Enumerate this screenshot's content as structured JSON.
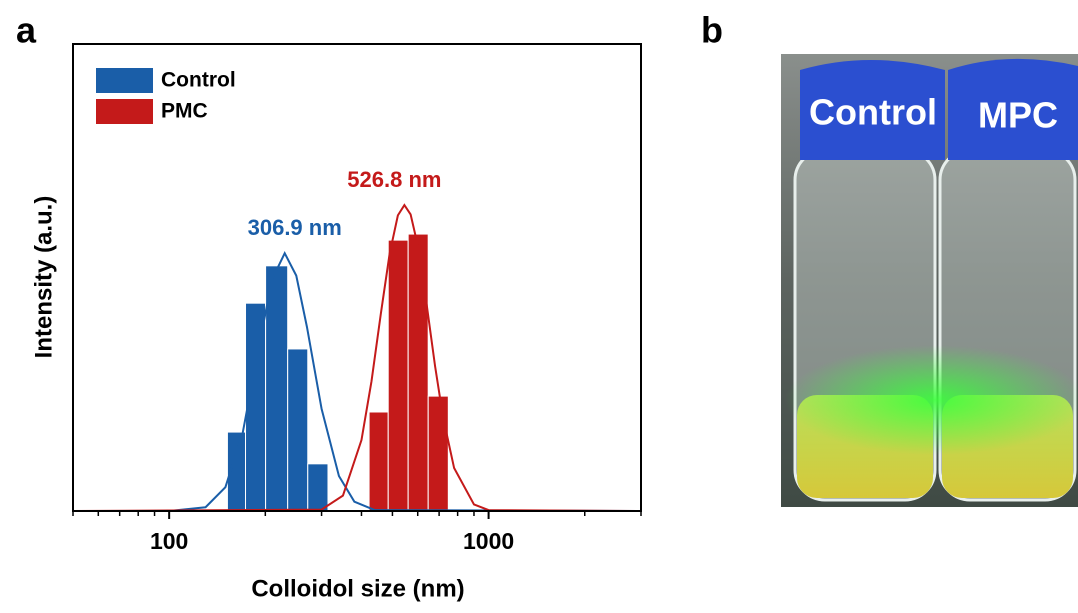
{
  "panel_labels": [
    "a",
    "b"
  ],
  "chart_data": {
    "type": "histogram",
    "xlabel": "Colloidol size (nm)",
    "ylabel": "Intensity (a.u.)",
    "xscale": "log",
    "xlim": [
      50,
      3000
    ],
    "ylim": [
      0,
      100
    ],
    "xticks": [
      100,
      1000
    ],
    "xminorticks": [
      50,
      60,
      70,
      80,
      90,
      200,
      300,
      400,
      500,
      600,
      700,
      800,
      900,
      2000,
      3000
    ],
    "legend": "upper left",
    "series": [
      {
        "name": "Control",
        "color": "#1a5ea8",
        "bins": [
          152.2,
          173.4,
          200.4,
          235.0,
          271.6,
          314.2
        ],
        "values": [
          16.9,
          44.5,
          52.5,
          34.7,
          10.1
        ],
        "fit": {
          "x": [
            50,
            100,
            130,
            150,
            170,
            190,
            210,
            230,
            250,
            270,
            300,
            340,
            380,
            440,
            3000
          ],
          "y": [
            0,
            0,
            0.8,
            5.1,
            16.8,
            34.4,
            49.6,
            55.2,
            50.4,
            39.4,
            21.9,
            7.5,
            2.0,
            0.2,
            0
          ]
        },
        "annotation": "306.9 nm"
      },
      {
        "name": "PMC",
        "color": "#c41a1a",
        "bins": [
          422.5,
          485,
          560,
          647,
          748
        ],
        "values": [
          21.2,
          58.0,
          59.3,
          24.6
        ],
        "fit": {
          "x": [
            50,
            300,
            350,
            400,
            430,
            460,
            490,
            520,
            545,
            570,
            600,
            640,
            680,
            720,
            780,
            900,
            1000,
            3000
          ],
          "y": [
            0,
            0.3,
            3.3,
            15.2,
            27.8,
            42.3,
            55.1,
            63.3,
            65.5,
            63.5,
            56.9,
            44.2,
            31.0,
            20.1,
            9.2,
            1.4,
            0.2,
            0
          ]
        },
        "annotation": "526.8 nm"
      }
    ]
  },
  "photo": {
    "labels": [
      "Control",
      "MPC"
    ]
  }
}
